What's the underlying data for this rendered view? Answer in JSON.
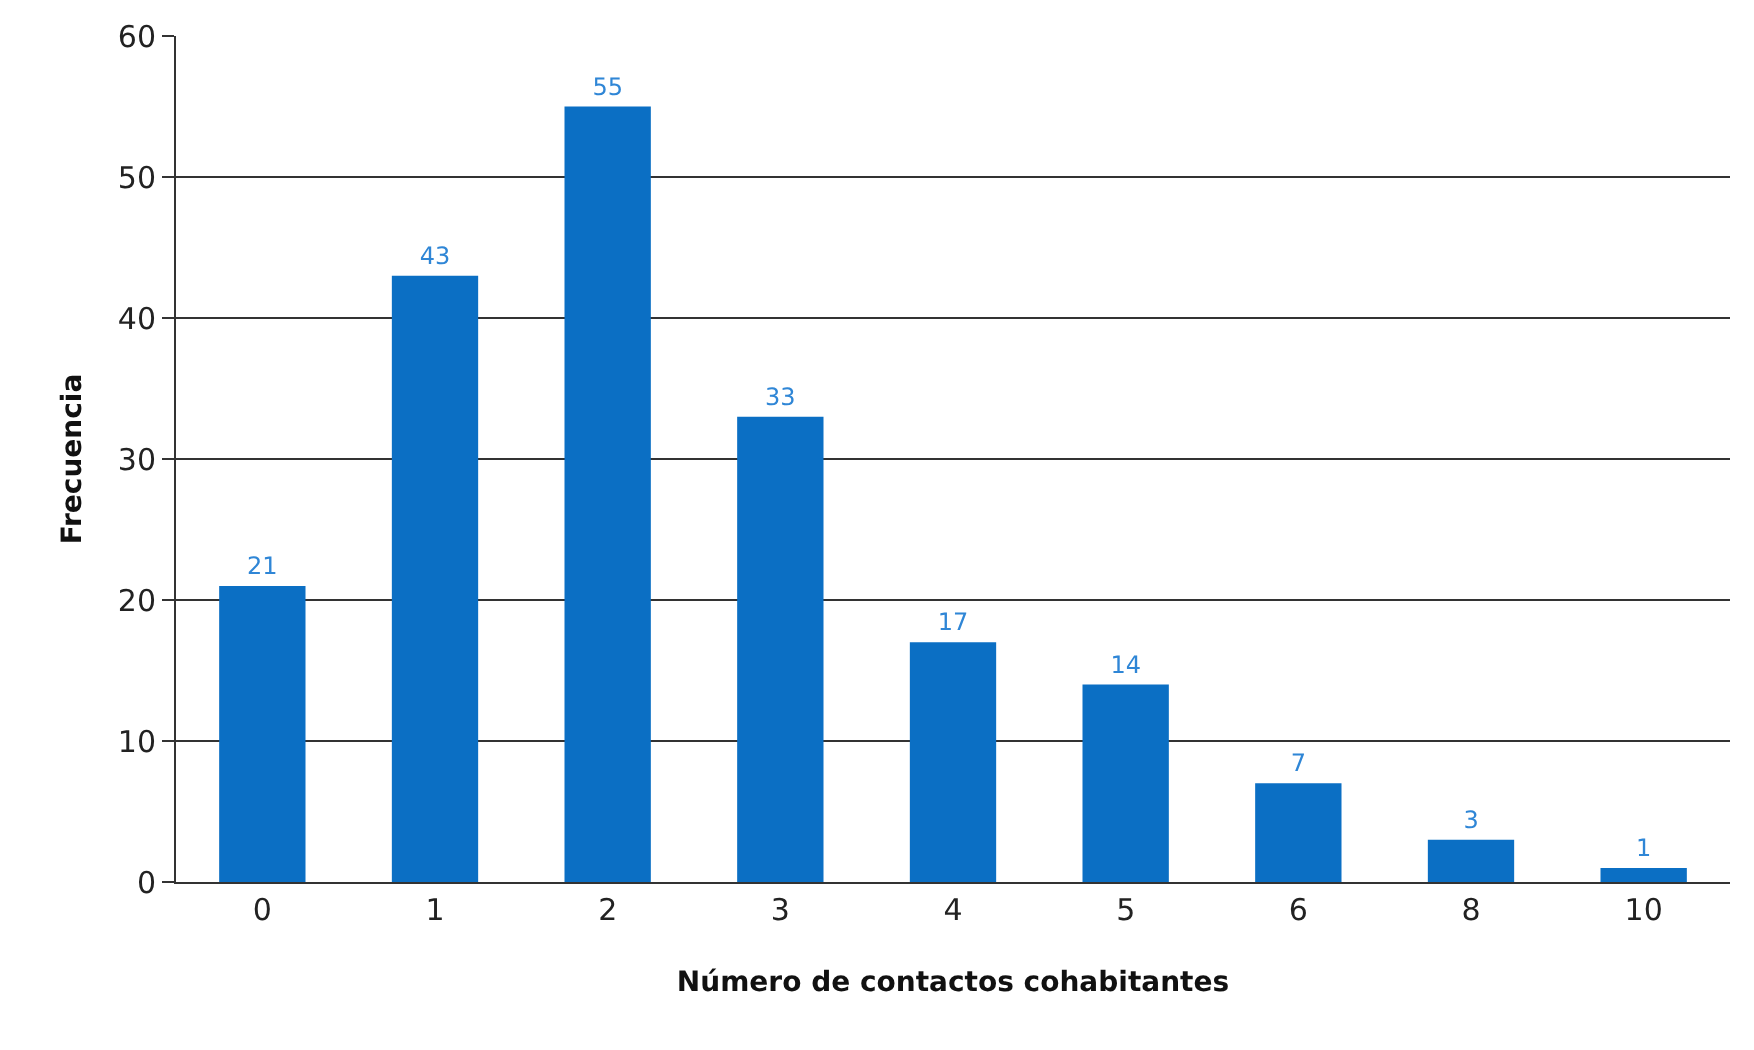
{
  "chart_data": {
    "type": "bar",
    "xlabel": "Número de contactos cohabitantes",
    "ylabel": "Frecuencia",
    "categories": [
      "0",
      "1",
      "2",
      "3",
      "4",
      "5",
      "6",
      "8",
      "10"
    ],
    "values": [
      21,
      43,
      55,
      33,
      17,
      14,
      7,
      3,
      1
    ],
    "color": "#0b6fc4",
    "ylim": [
      0,
      60
    ],
    "yticks": [
      0,
      10,
      20,
      30,
      40,
      50,
      60
    ],
    "grid": "y",
    "data_labels": true
  }
}
